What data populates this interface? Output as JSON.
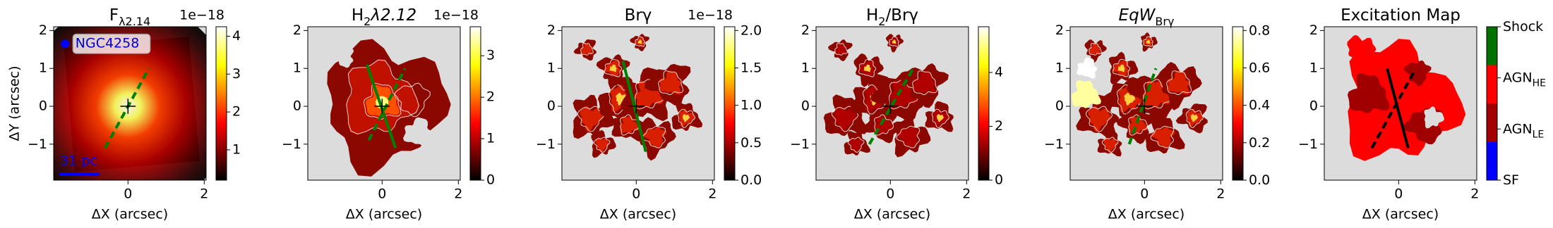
{
  "chart_data": [
    {
      "type": "image",
      "title": [
        {
          "text": "F"
        },
        {
          "text": "λ2.14",
          "sub": true
        }
      ],
      "xlabel": "ΔX (arcsec)",
      "ylabel": "ΔY (arcsec)",
      "xlim": [
        -1.95,
        2.05
      ],
      "ylim": [
        -1.95,
        2.1
      ],
      "xticks": [
        0,
        2
      ],
      "yticks": [
        {
          "value": -1,
          "label": "−1"
        },
        0,
        1,
        2
      ],
      "colorbar": {
        "cmap": "hot",
        "lim": [
          0.2,
          4.25
        ],
        "ticks": [
          1,
          2,
          3,
          4
        ],
        "offset_text": "1e−18"
      },
      "annotations": [
        {
          "text": "NGC4258"
        },
        {
          "text": "31 pc"
        }
      ]
    },
    {
      "type": "image",
      "title": [
        {
          "text": "H"
        },
        {
          "text": "2",
          "sub": true
        },
        {
          "text": "λ2.12",
          "italic": true
        }
      ],
      "xlabel": "ΔX (arcsec)",
      "xlim": [
        -1.95,
        2.05
      ],
      "ylim": [
        -1.95,
        2.1
      ],
      "xticks": [
        0,
        2
      ],
      "yticks": [
        {
          "value": -1,
          "label": "−1"
        },
        0,
        1,
        2
      ],
      "colorbar": {
        "cmap": "hot",
        "lim": [
          0,
          3.7
        ],
        "ticks": [
          0,
          1,
          2,
          3
        ],
        "offset_text": "1e−18"
      }
    },
    {
      "type": "image",
      "title": [
        {
          "text": "Brγ"
        }
      ],
      "xlabel": "ΔX (arcsec)",
      "xlim": [
        -1.95,
        2.05
      ],
      "ylim": [
        -1.95,
        2.1
      ],
      "xticks": [
        0,
        2
      ],
      "yticks": [
        {
          "value": -1,
          "label": "−1"
        },
        0,
        1,
        2
      ],
      "colorbar": {
        "cmap": "hot",
        "lim": [
          0,
          2.05
        ],
        "ticks": [
          {
            "value": 0,
            "label": "0.0"
          },
          {
            "value": 0.5,
            "label": "0.5"
          },
          {
            "value": 1,
            "label": "1.0"
          },
          {
            "value": 1.5,
            "label": "1.5"
          },
          {
            "value": 2,
            "label": "2.0"
          }
        ],
        "offset_text": "1e−18"
      }
    },
    {
      "type": "image",
      "title": [
        {
          "text": "H"
        },
        {
          "text": "2",
          "sub": true
        },
        {
          "text": "/Brγ"
        }
      ],
      "xlabel": "ΔX (arcsec)",
      "xlim": [
        -1.95,
        2.05
      ],
      "ylim": [
        -1.95,
        2.1
      ],
      "xticks": [
        0,
        2
      ],
      "yticks": [
        {
          "value": -1,
          "label": "−1"
        },
        0,
        1,
        2
      ],
      "colorbar": {
        "cmap": "hot",
        "lim": [
          0,
          5.7
        ],
        "ticks": [
          0,
          2,
          4
        ]
      }
    },
    {
      "type": "image",
      "title": [
        {
          "text": "EqW",
          "italic": true
        },
        {
          "text": "Brγ",
          "sub": true
        }
      ],
      "xlabel": "ΔX (arcsec)",
      "xlim": [
        -1.95,
        2.05
      ],
      "ylim": [
        -1.95,
        2.1
      ],
      "xticks": [
        0,
        2
      ],
      "yticks": [
        {
          "value": -1,
          "label": "−1"
        },
        0,
        1,
        2
      ],
      "colorbar": {
        "cmap": "hot",
        "lim": [
          0,
          0.82
        ],
        "ticks": [
          {
            "value": 0,
            "label": "0.0"
          },
          {
            "value": 0.2,
            "label": "0.2"
          },
          {
            "value": 0.4,
            "label": "0.4"
          },
          {
            "value": 0.6,
            "label": "0.6"
          },
          {
            "value": 0.8,
            "label": "0.8"
          }
        ]
      }
    },
    {
      "type": "image",
      "title": [
        {
          "text": "Excitation Map"
        }
      ],
      "xlabel": "ΔX (arcsec)",
      "xlim": [
        -1.95,
        2.05
      ],
      "ylim": [
        -1.95,
        2.1
      ],
      "xticks": [
        0,
        2
      ],
      "yticks": [
        {
          "value": -1,
          "label": "−1"
        },
        0,
        1,
        2
      ],
      "colorbar": {
        "cmap": "categorical",
        "lim": [
          1,
          4
        ],
        "bounds": [
          1,
          1.75,
          2.5,
          3.25,
          4
        ],
        "colors": [
          "#0000ff",
          "#a00000",
          "#ff0000",
          "#007000"
        ],
        "ticks": [
          {
            "value": 1,
            "label": "SF"
          },
          {
            "value": 2,
            "label": "AGN",
            "sub": "LE"
          },
          {
            "value": 3,
            "label": "AGN",
            "sub": "HE"
          },
          {
            "value": 4,
            "label": "Shock"
          }
        ]
      }
    }
  ]
}
